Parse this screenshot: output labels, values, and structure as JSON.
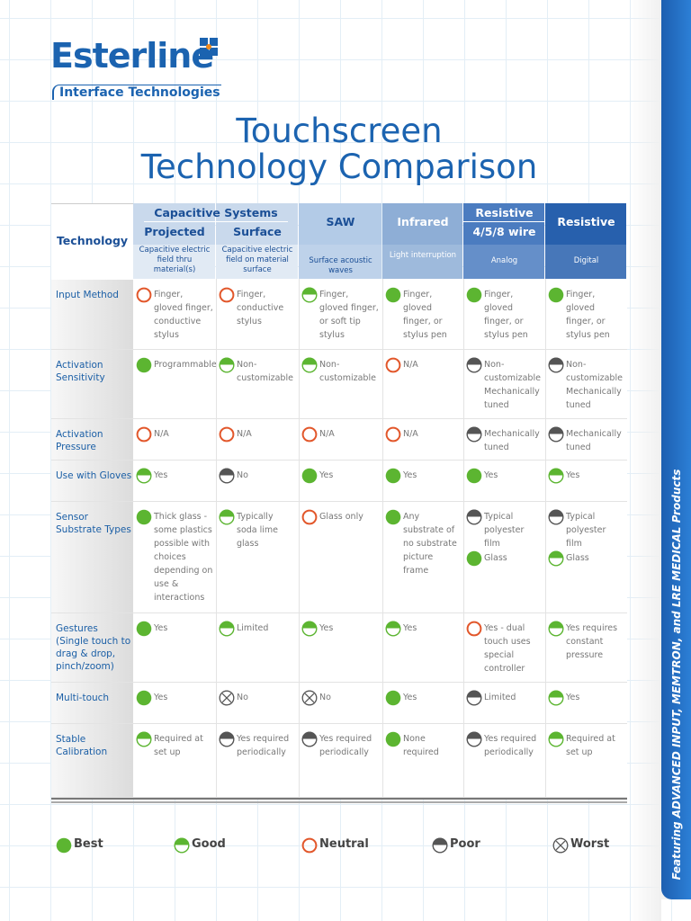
{
  "header": {
    "logo": "Esterline",
    "logo_subtitle": "Interface Technologies",
    "title_lines": [
      "Touchscreen",
      "Technology Comparison"
    ]
  },
  "table": {
    "corner": "Technology",
    "group": "Capacitive Systems",
    "columns": [
      {
        "name": "Projected",
        "desc": "Capacitive electric field thru material(s)"
      },
      {
        "name": "Surface",
        "desc": "Capacitive electric field on material surface"
      },
      {
        "name": "SAW",
        "desc": "Surface acoustic waves"
      },
      {
        "name": "Infrared",
        "desc": "Light interruption"
      },
      {
        "name": "Resistive",
        "subname": "4/5/8 wire",
        "desc": "Analog"
      },
      {
        "name": "Resistive",
        "desc": "Digital"
      }
    ],
    "rows": [
      {
        "label": "Input Method",
        "cells": [
          [
            "Finger, gloved finger, conductive stylus"
          ],
          [
            "Finger, conductive stylus"
          ],
          [
            "Finger, gloved finger, or soft tip stylus"
          ],
          [
            "Finger, gloved finger, or stylus pen"
          ],
          [
            "Finger, gloved finger, or stylus pen"
          ],
          [
            "Finger, gloved finger, or stylus pen"
          ]
        ]
      },
      {
        "label": "Activation Sensitivity",
        "cells": [
          [
            "Programmable"
          ],
          [
            "Non-customizable"
          ],
          [
            "Non-customizable"
          ],
          [
            "N/A"
          ],
          [
            "Non-customizable Mechanically tuned"
          ],
          [
            "Non-customizable Mechanically tuned"
          ]
        ]
      },
      {
        "label": "Activation Pressure",
        "cells": [
          [
            "N/A"
          ],
          [
            "N/A"
          ],
          [
            "N/A"
          ],
          [
            "N/A"
          ],
          [
            "Mechanically tuned"
          ],
          [
            "Mechanically tuned"
          ]
        ]
      },
      {
        "label": "Use with Gloves",
        "cells": [
          [
            "Yes"
          ],
          [
            "No"
          ],
          [
            "Yes"
          ],
          [
            "Yes"
          ],
          [
            "Yes"
          ],
          [
            "Yes"
          ]
        ]
      },
      {
        "label": "Sensor Substrate Types",
        "cells": [
          [
            "Thick glass - some plastics possible with choices depending on use & interactions"
          ],
          [
            "Typically soda lime glass"
          ],
          [
            "Glass only"
          ],
          [
            "Any substrate of no substrate picture frame"
          ],
          [
            "Typical polyester film",
            "Glass"
          ],
          [
            "Typical polyester film",
            "Glass"
          ]
        ]
      },
      {
        "label": "Gestures (Single touch to drag & drop, pinch/zoom)",
        "cells": [
          [
            "Yes"
          ],
          [
            "Limited"
          ],
          [
            "Yes"
          ],
          [
            "Yes"
          ],
          [
            "Yes - dual touch uses special controller"
          ],
          [
            "Yes requires constant pressure"
          ]
        ]
      },
      {
        "label": "Multi-touch",
        "cells": [
          [
            "Yes"
          ],
          [
            "No"
          ],
          [
            "No"
          ],
          [
            "Yes"
          ],
          [
            "Limited"
          ],
          [
            "Yes"
          ]
        ]
      },
      {
        "label": "Stable Calibration",
        "cells": [
          [
            "Required at set up"
          ],
          [
            "Yes required periodically"
          ],
          [
            "Yes required periodically"
          ],
          [
            "None required"
          ],
          [
            "Yes required periodically"
          ],
          [
            "Required at set up"
          ]
        ]
      }
    ]
  },
  "legend": [
    "Best",
    "Good",
    "Neutral",
    "Poor",
    "Worst"
  ],
  "sidebar": "Featuring ADVANCED INPUT, MEMTRON, and LRE MEDICAL Products"
}
